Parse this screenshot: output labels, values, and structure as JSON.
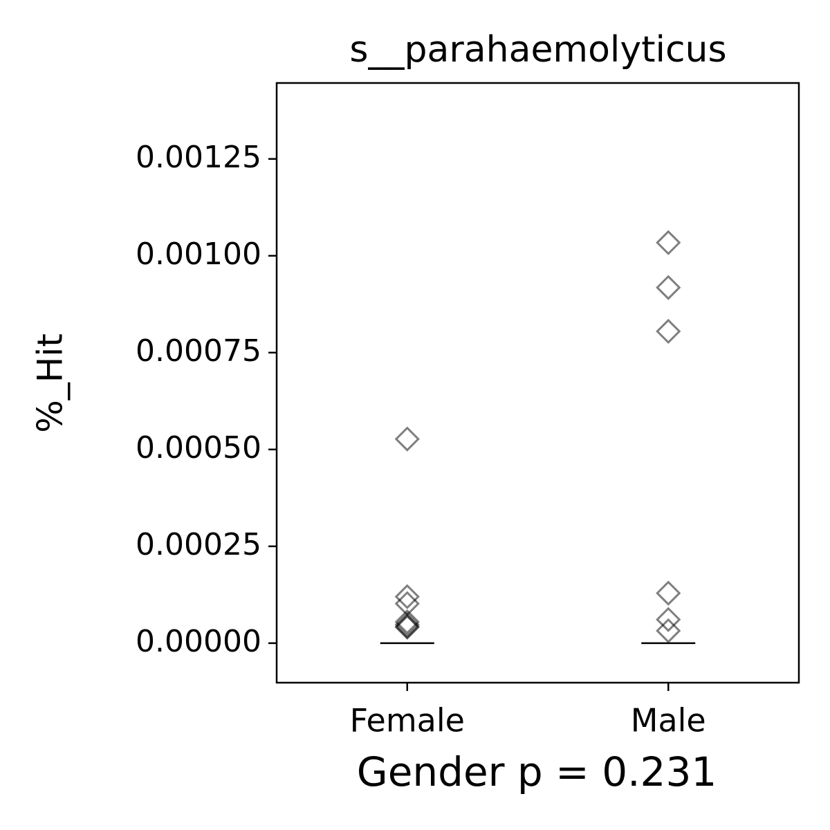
{
  "chart_data": {
    "type": "strip",
    "title": "s__parahaemolyticus",
    "x_label": "Gender p = 0.231",
    "y_label": "%_Hit",
    "categories": [
      "Female",
      "Male"
    ],
    "points": [
      [
        0.000527,
        0.00012,
        0.000102,
        5.5e-05,
        4.8e-05,
        4.3e-05,
        4.1e-05
      ],
      [
        0.001034,
        0.000918,
        0.000805,
        0.000129,
        6.1e-05,
        3.2e-05
      ]
    ],
    "medians": [
      0,
      0
    ],
    "color": "#000000",
    "ylim": [
      -0.000102,
      0.001446
    ],
    "yticks": [
      {
        "value": 0,
        "label": "0.00000"
      },
      {
        "value": 0.00025,
        "label": "0.00025"
      },
      {
        "value": 0.0005,
        "label": "0.00050"
      },
      {
        "value": 0.00075,
        "label": "0.00075"
      },
      {
        "value": 0.001,
        "label": "0.00100"
      },
      0.00125
    ]
  }
}
